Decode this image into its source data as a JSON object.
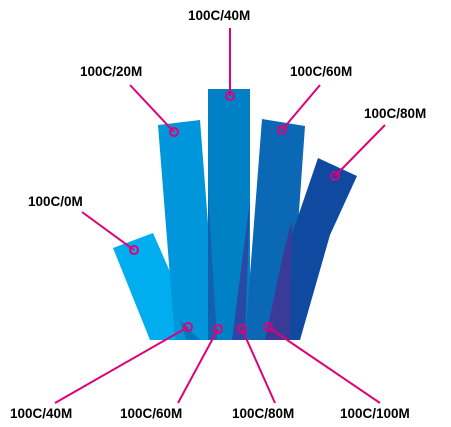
{
  "colors": {
    "leader": "#e0007a",
    "blade_0M": "#00aeef",
    "blade_20M": "#0096db",
    "blade_40M": "#0081c6",
    "blade_60M": "#0a68b4",
    "blade_80M": "#0f4aa0",
    "overlap_40M": "#0078c0",
    "overlap_60M": "#1460b0",
    "overlap_80M": "#2a49a5",
    "overlap_100M": "#3a3a98"
  },
  "labels": {
    "c100_m0": "100C/0M",
    "c100_m20": "100C/20M",
    "c100_m40": "100C/40M",
    "c100_m60": "100C/60M",
    "c100_m80": "100C/80M",
    "bottom_m40": "100C/40M",
    "bottom_m60": "100C/60M",
    "bottom_m80": "100C/80M",
    "bottom_m100": "100C/100M"
  }
}
